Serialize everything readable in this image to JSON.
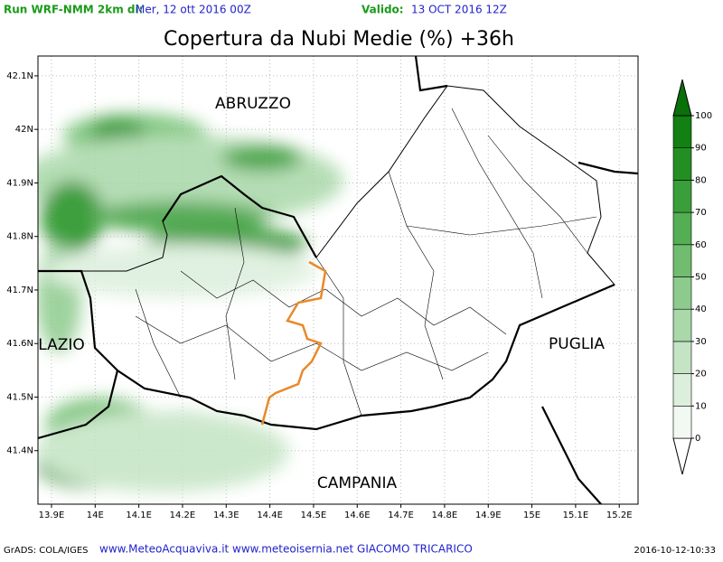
{
  "header": {
    "run_label": "Run WRF-NMM 2km di:",
    "run_date": "Mer, 12 ott 2016 00Z",
    "valid_label": "Valido:",
    "valid_date": "13 OCT 2016 12Z",
    "title": "Copertura da Nubi Medie (%) +36h"
  },
  "map": {
    "lonlim": [
      13.869,
      15.243
    ],
    "latlim": [
      41.3,
      42.137
    ],
    "lonticks": [
      {
        "value": 13.9,
        "label": "13.9E"
      },
      {
        "value": 14.0,
        "label": "14E"
      },
      {
        "value": 14.1,
        "label": "14.1E"
      },
      {
        "value": 14.2,
        "label": "14.2E"
      },
      {
        "value": 14.3,
        "label": "14.3E"
      },
      {
        "value": 14.4,
        "label": "14.4E"
      },
      {
        "value": 14.5,
        "label": "14.5E"
      },
      {
        "value": 14.6,
        "label": "14.6E"
      },
      {
        "value": 14.7,
        "label": "14.7E"
      },
      {
        "value": 14.8,
        "label": "14.8E"
      },
      {
        "value": 14.9,
        "label": "14.9E"
      },
      {
        "value": 15.0,
        "label": "15E"
      },
      {
        "value": 15.1,
        "label": "15.1E"
      },
      {
        "value": 15.2,
        "label": "15.2E"
      }
    ],
    "latticks": [
      {
        "value": 41.4,
        "label": "41.4N"
      },
      {
        "value": 41.5,
        "label": "41.5N"
      },
      {
        "value": 41.6,
        "label": "41.6N"
      },
      {
        "value": 41.7,
        "label": "41.7N"
      },
      {
        "value": 41.8,
        "label": "41.8N"
      },
      {
        "value": 41.9,
        "label": "41.9N"
      },
      {
        "value": 42.0,
        "label": "42N"
      },
      {
        "value": 42.1,
        "label": "42.1N"
      }
    ],
    "regions": [
      "ABRUZZO",
      "LAZIO",
      "PUGLIA",
      "CAMPANIA"
    ]
  },
  "colorbar": {
    "levels": [
      0,
      10,
      20,
      30,
      40,
      50,
      60,
      70,
      80,
      90,
      100
    ],
    "colors": [
      "#ffffff",
      "#f2f9f2",
      "#dcefdc",
      "#c4e4c4",
      "#a9d8a9",
      "#8dcb8d",
      "#70bd70",
      "#54ae54",
      "#3a9f3a",
      "#238f23",
      "#128012",
      "#0a700a"
    ]
  },
  "footer": {
    "software": "GrADS: COLA/IGES",
    "credits": "www.MeteoAcquaviva.it www.meteoisernia.net GIACOMO TRICARICO",
    "timestamp": "2016-10-12-10:33"
  }
}
